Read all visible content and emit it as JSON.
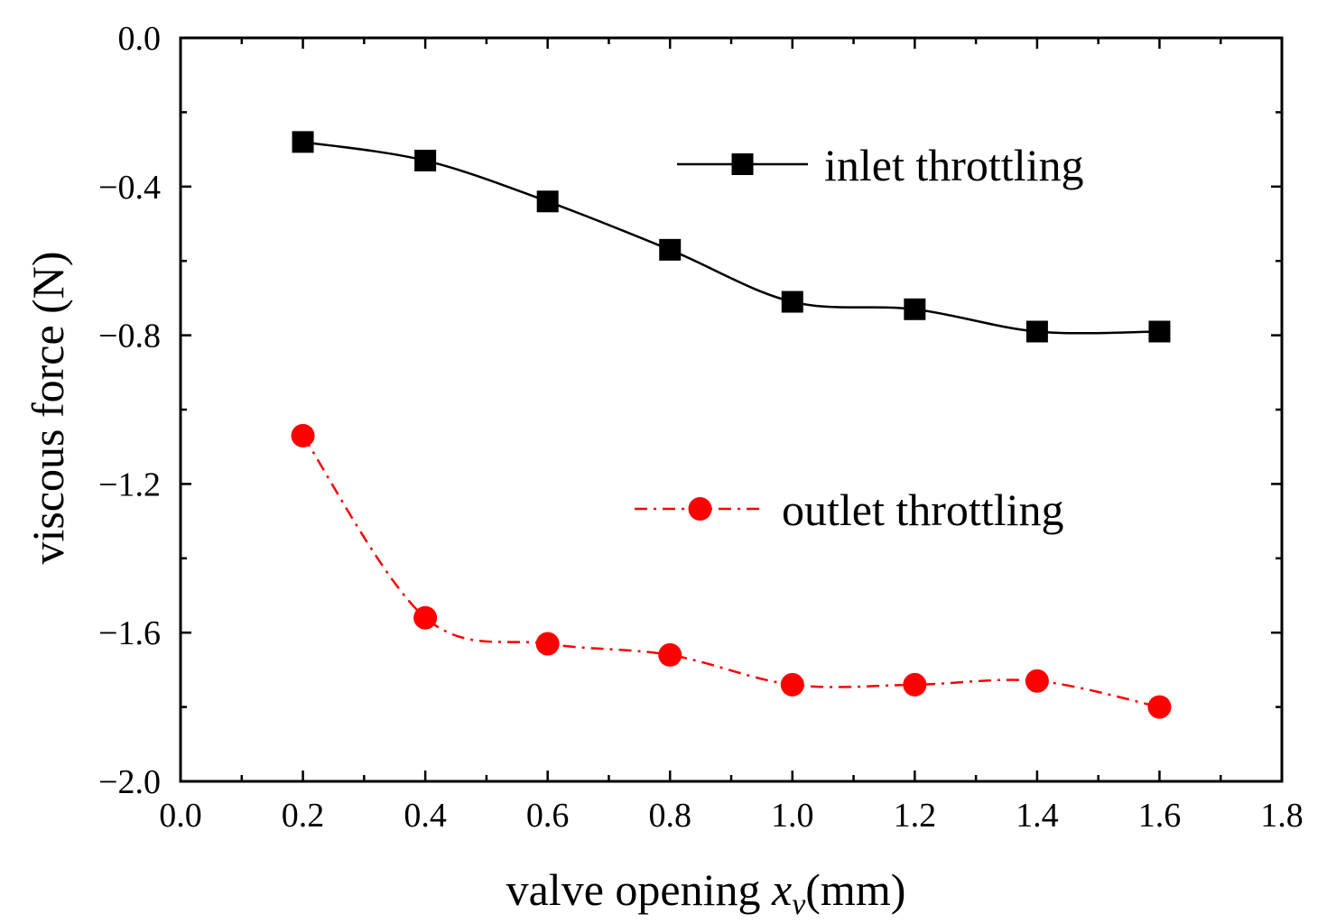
{
  "chart_data": {
    "type": "line",
    "title": "",
    "xlabel_prefix": "valve opening ",
    "xlabel_var": "x",
    "xlabel_sub": "v",
    "xlabel_suffix": "(mm)",
    "ylabel": "viscous force (N)",
    "xlim": [
      0.0,
      1.8
    ],
    "ylim": [
      -2.0,
      0.0
    ],
    "x_ticks": [
      "0.0",
      "0.2",
      "0.4",
      "0.6",
      "0.8",
      "1.0",
      "1.2",
      "1.4",
      "1.6",
      "1.8"
    ],
    "y_ticks": [
      "0.0",
      "−0.4",
      "−0.8",
      "−1.2",
      "−1.6",
      "−2.0"
    ],
    "x": [
      0.2,
      0.4,
      0.6,
      0.8,
      1.0,
      1.2,
      1.4,
      1.6
    ],
    "series": [
      {
        "name": "inlet throttling",
        "values": [
          -0.28,
          -0.33,
          -0.44,
          -0.57,
          -0.71,
          -0.73,
          -0.79,
          -0.79
        ],
        "color": "#000000",
        "marker": "square",
        "line_style": "solid"
      },
      {
        "name": "outlet throttling",
        "values": [
          -1.07,
          -1.56,
          -1.63,
          -1.66,
          -1.74,
          -1.74,
          -1.73,
          -1.8
        ],
        "color": "#ff0000",
        "marker": "circle",
        "line_style": "dash-dot"
      }
    ],
    "grid": false,
    "legend_position": "right"
  }
}
